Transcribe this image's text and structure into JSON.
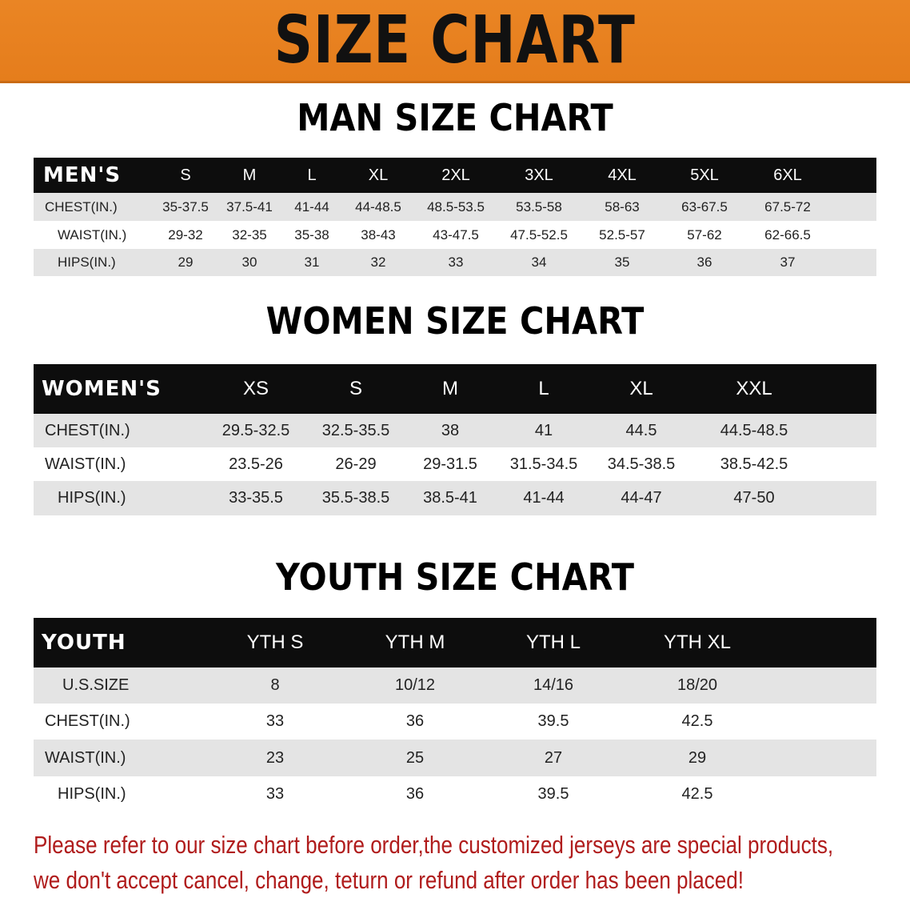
{
  "banner_title": "SIZE CHART",
  "colors": {
    "banner": "#e8801f",
    "header_row": "#0d0d0d",
    "stripe": "#e4e4e4",
    "note": "#b01c1c"
  },
  "men": {
    "title": "MAN SIZE CHART",
    "header_label": "MEN'S",
    "sizes": [
      "S",
      "M",
      "L",
      "XL",
      "2XL",
      "3XL",
      "4XL",
      "5XL",
      "6XL"
    ],
    "rows": [
      {
        "label": "CHEST(IN.)",
        "values": [
          "35-37.5",
          "37.5-41",
          "41-44",
          "44-48.5",
          "48.5-53.5",
          "53.5-58",
          "58-63",
          "63-67.5",
          "67.5-72"
        ]
      },
      {
        "label": "WAIST(IN.)",
        "values": [
          "29-32",
          "32-35",
          "35-38",
          "38-43",
          "43-47.5",
          "47.5-52.5",
          "52.5-57",
          "57-62",
          "62-66.5"
        ]
      },
      {
        "label": "HIPS(IN.)",
        "values": [
          "29",
          "30",
          "31",
          "32",
          "33",
          "34",
          "35",
          "36",
          "37"
        ]
      }
    ]
  },
  "women": {
    "title": "WOMEN SIZE CHART",
    "header_label": "WOMEN'S",
    "sizes": [
      "XS",
      "S",
      "M",
      "L",
      "XL",
      "XXL"
    ],
    "rows": [
      {
        "label": "CHEST(IN.)",
        "values": [
          "29.5-32.5",
          "32.5-35.5",
          "38",
          "41",
          "44.5",
          "44.5-48.5"
        ]
      },
      {
        "label": "WAIST(IN.)",
        "values": [
          "23.5-26",
          "26-29",
          "29-31.5",
          "31.5-34.5",
          "34.5-38.5",
          "38.5-42.5"
        ]
      },
      {
        "label": "HIPS(IN.)",
        "values": [
          "33-35.5",
          "35.5-38.5",
          "38.5-41",
          "41-44",
          "44-47",
          "47-50"
        ]
      }
    ]
  },
  "youth": {
    "title": "YOUTH SIZE CHART",
    "header_label": "YOUTH",
    "sizes": [
      "YTH S",
      "YTH M",
      "YTH L",
      "YTH XL"
    ],
    "rows": [
      {
        "label": "U.S.SIZE",
        "values": [
          "8",
          "10/12",
          "14/16",
          "18/20"
        ]
      },
      {
        "label": "CHEST(IN.)",
        "values": [
          "33",
          "36",
          "39.5",
          "42.5"
        ]
      },
      {
        "label": "WAIST(IN.)",
        "values": [
          "23",
          "25",
          "27",
          "29"
        ]
      },
      {
        "label": "HIPS(IN.)",
        "values": [
          "33",
          "36",
          "39.5",
          "42.5"
        ]
      }
    ]
  },
  "note": [
    "Please refer to our size chart before order,the customized jerseys are special products,",
    "we don't accept cancel, change, teturn or refund after order has been placed!"
  ]
}
